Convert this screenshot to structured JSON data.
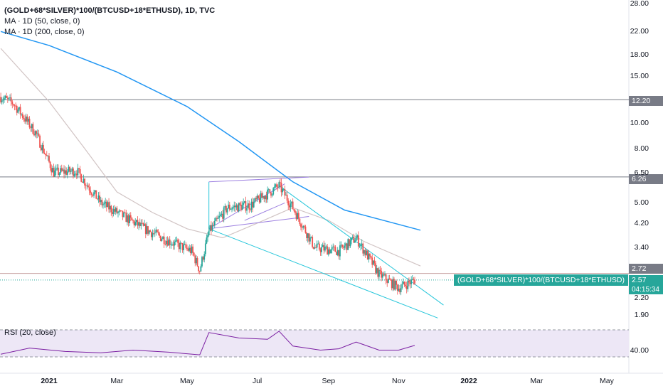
{
  "legend": {
    "title": "(GOLD+68*SILVER)*100/(BTCUSD+18*ETHUSD), 1D, TVC",
    "ma50": "MA · 1D (50, close, 0)",
    "ma200": "MA · 1D (200, close, 0)"
  },
  "rsi_label": "RSI (20, close)",
  "series_label": "(GOLD+68*SILVER)*100/(BTCUSD+18*ETHUSD)",
  "current_price": "2.57",
  "countdown": "04:15:34",
  "hline_tags": [
    "12.20",
    "6.26",
    "2.72"
  ],
  "colors": {
    "up": "#26a69a",
    "down": "#ef5350",
    "ma50": "#d1c4c4",
    "ma200": "#2196f3",
    "channel": "#9c7fe0",
    "wedge": "#26c6da",
    "rsi_line": "#7b1fa2",
    "rsi_band": "#ede7f6"
  },
  "chart_data": {
    "type": "candlestick",
    "title": "(GOLD+68*SILVER)*100/(BTCUSD+18*ETHUSD), 1D, TVC",
    "y_scale": "log",
    "ylim": [
      1.7,
      28.0
    ],
    "y_ticks": [
      "28.00",
      "22.00",
      "18.00",
      "15.00",
      "12.20",
      "10.00",
      "8.00",
      "6.50",
      "5.00",
      "4.20",
      "3.40",
      "2.72",
      "2.20",
      "1.90"
    ],
    "x_ticks": [
      "2021",
      "Mar",
      "May",
      "Jul",
      "Sep",
      "Nov",
      "2022",
      "Mar",
      "May"
    ],
    "close_path": [
      {
        "date": "2020-11-20",
        "value": 12.5
      },
      {
        "date": "2020-12-01",
        "value": 11.8
      },
      {
        "date": "2020-12-20",
        "value": 9.2
      },
      {
        "date": "2021-01-05",
        "value": 6.5
      },
      {
        "date": "2021-01-25",
        "value": 6.6
      },
      {
        "date": "2021-02-15",
        "value": 5.0
      },
      {
        "date": "2021-03-05",
        "value": 4.5
      },
      {
        "date": "2021-03-25",
        "value": 4.0
      },
      {
        "date": "2021-04-15",
        "value": 3.6
      },
      {
        "date": "2021-05-05",
        "value": 3.3
      },
      {
        "date": "2021-05-12",
        "value": 2.8
      },
      {
        "date": "2021-05-20",
        "value": 3.9
      },
      {
        "date": "2021-06-05",
        "value": 4.8
      },
      {
        "date": "2021-06-25",
        "value": 4.9
      },
      {
        "date": "2021-07-20",
        "value": 5.8
      },
      {
        "date": "2021-08-01",
        "value": 4.8
      },
      {
        "date": "2021-08-20",
        "value": 3.4
      },
      {
        "date": "2021-09-10",
        "value": 3.3
      },
      {
        "date": "2021-09-25",
        "value": 3.7
      },
      {
        "date": "2021-10-15",
        "value": 2.7
      },
      {
        "date": "2021-11-01",
        "value": 2.4
      },
      {
        "date": "2021-11-15",
        "value": 2.57
      }
    ],
    "series": [
      {
        "name": "MA · 1D (50, close, 0)",
        "values": [
          {
            "date": "2020-11-20",
            "value": 19.0
          },
          {
            "date": "2021-01-01",
            "value": 12.0
          },
          {
            "date": "2021-02-01",
            "value": 8.0
          },
          {
            "date": "2021-03-01",
            "value": 5.5
          },
          {
            "date": "2021-04-01",
            "value": 4.6
          },
          {
            "date": "2021-05-01",
            "value": 4.0
          },
          {
            "date": "2021-06-01",
            "value": 3.7
          },
          {
            "date": "2021-07-01",
            "value": 4.2
          },
          {
            "date": "2021-08-01",
            "value": 4.8
          },
          {
            "date": "2021-09-01",
            "value": 4.3
          },
          {
            "date": "2021-10-01",
            "value": 3.6
          },
          {
            "date": "2021-11-20",
            "value": 2.9
          }
        ]
      },
      {
        "name": "MA · 1D (200, close, 0)",
        "values": [
          {
            "date": "2020-11-20",
            "value": 22.0
          },
          {
            "date": "2021-01-01",
            "value": 19.5
          },
          {
            "date": "2021-03-01",
            "value": 15.5
          },
          {
            "date": "2021-05-01",
            "value": 11.5
          },
          {
            "date": "2021-06-15",
            "value": 8.5
          },
          {
            "date": "2021-08-01",
            "value": 6.0
          },
          {
            "date": "2021-09-15",
            "value": 4.7
          },
          {
            "date": "2021-11-20",
            "value": 3.95
          }
        ]
      }
    ],
    "horizontal_lines": [
      12.2,
      6.26,
      2.72
    ],
    "current_value": 2.57,
    "rsi": {
      "name": "RSI (20, close)",
      "band": [
        30,
        70
      ],
      "tick": "40.00",
      "values": [
        {
          "date": "2020-11-20",
          "value": 34
        },
        {
          "date": "2020-12-15",
          "value": 43
        },
        {
          "date": "2021-01-15",
          "value": 38
        },
        {
          "date": "2021-02-15",
          "value": 36
        },
        {
          "date": "2021-03-15",
          "value": 40
        },
        {
          "date": "2021-04-15",
          "value": 37
        },
        {
          "date": "2021-05-12",
          "value": 33
        },
        {
          "date": "2021-05-20",
          "value": 66
        },
        {
          "date": "2021-06-15",
          "value": 58
        },
        {
          "date": "2021-07-10",
          "value": 56
        },
        {
          "date": "2021-07-20",
          "value": 68
        },
        {
          "date": "2021-08-01",
          "value": 46
        },
        {
          "date": "2021-08-25",
          "value": 40
        },
        {
          "date": "2021-09-10",
          "value": 42
        },
        {
          "date": "2021-09-25",
          "value": 52
        },
        {
          "date": "2021-10-15",
          "value": 40
        },
        {
          "date": "2021-11-01",
          "value": 40
        },
        {
          "date": "2021-11-15",
          "value": 47
        }
      ]
    }
  }
}
